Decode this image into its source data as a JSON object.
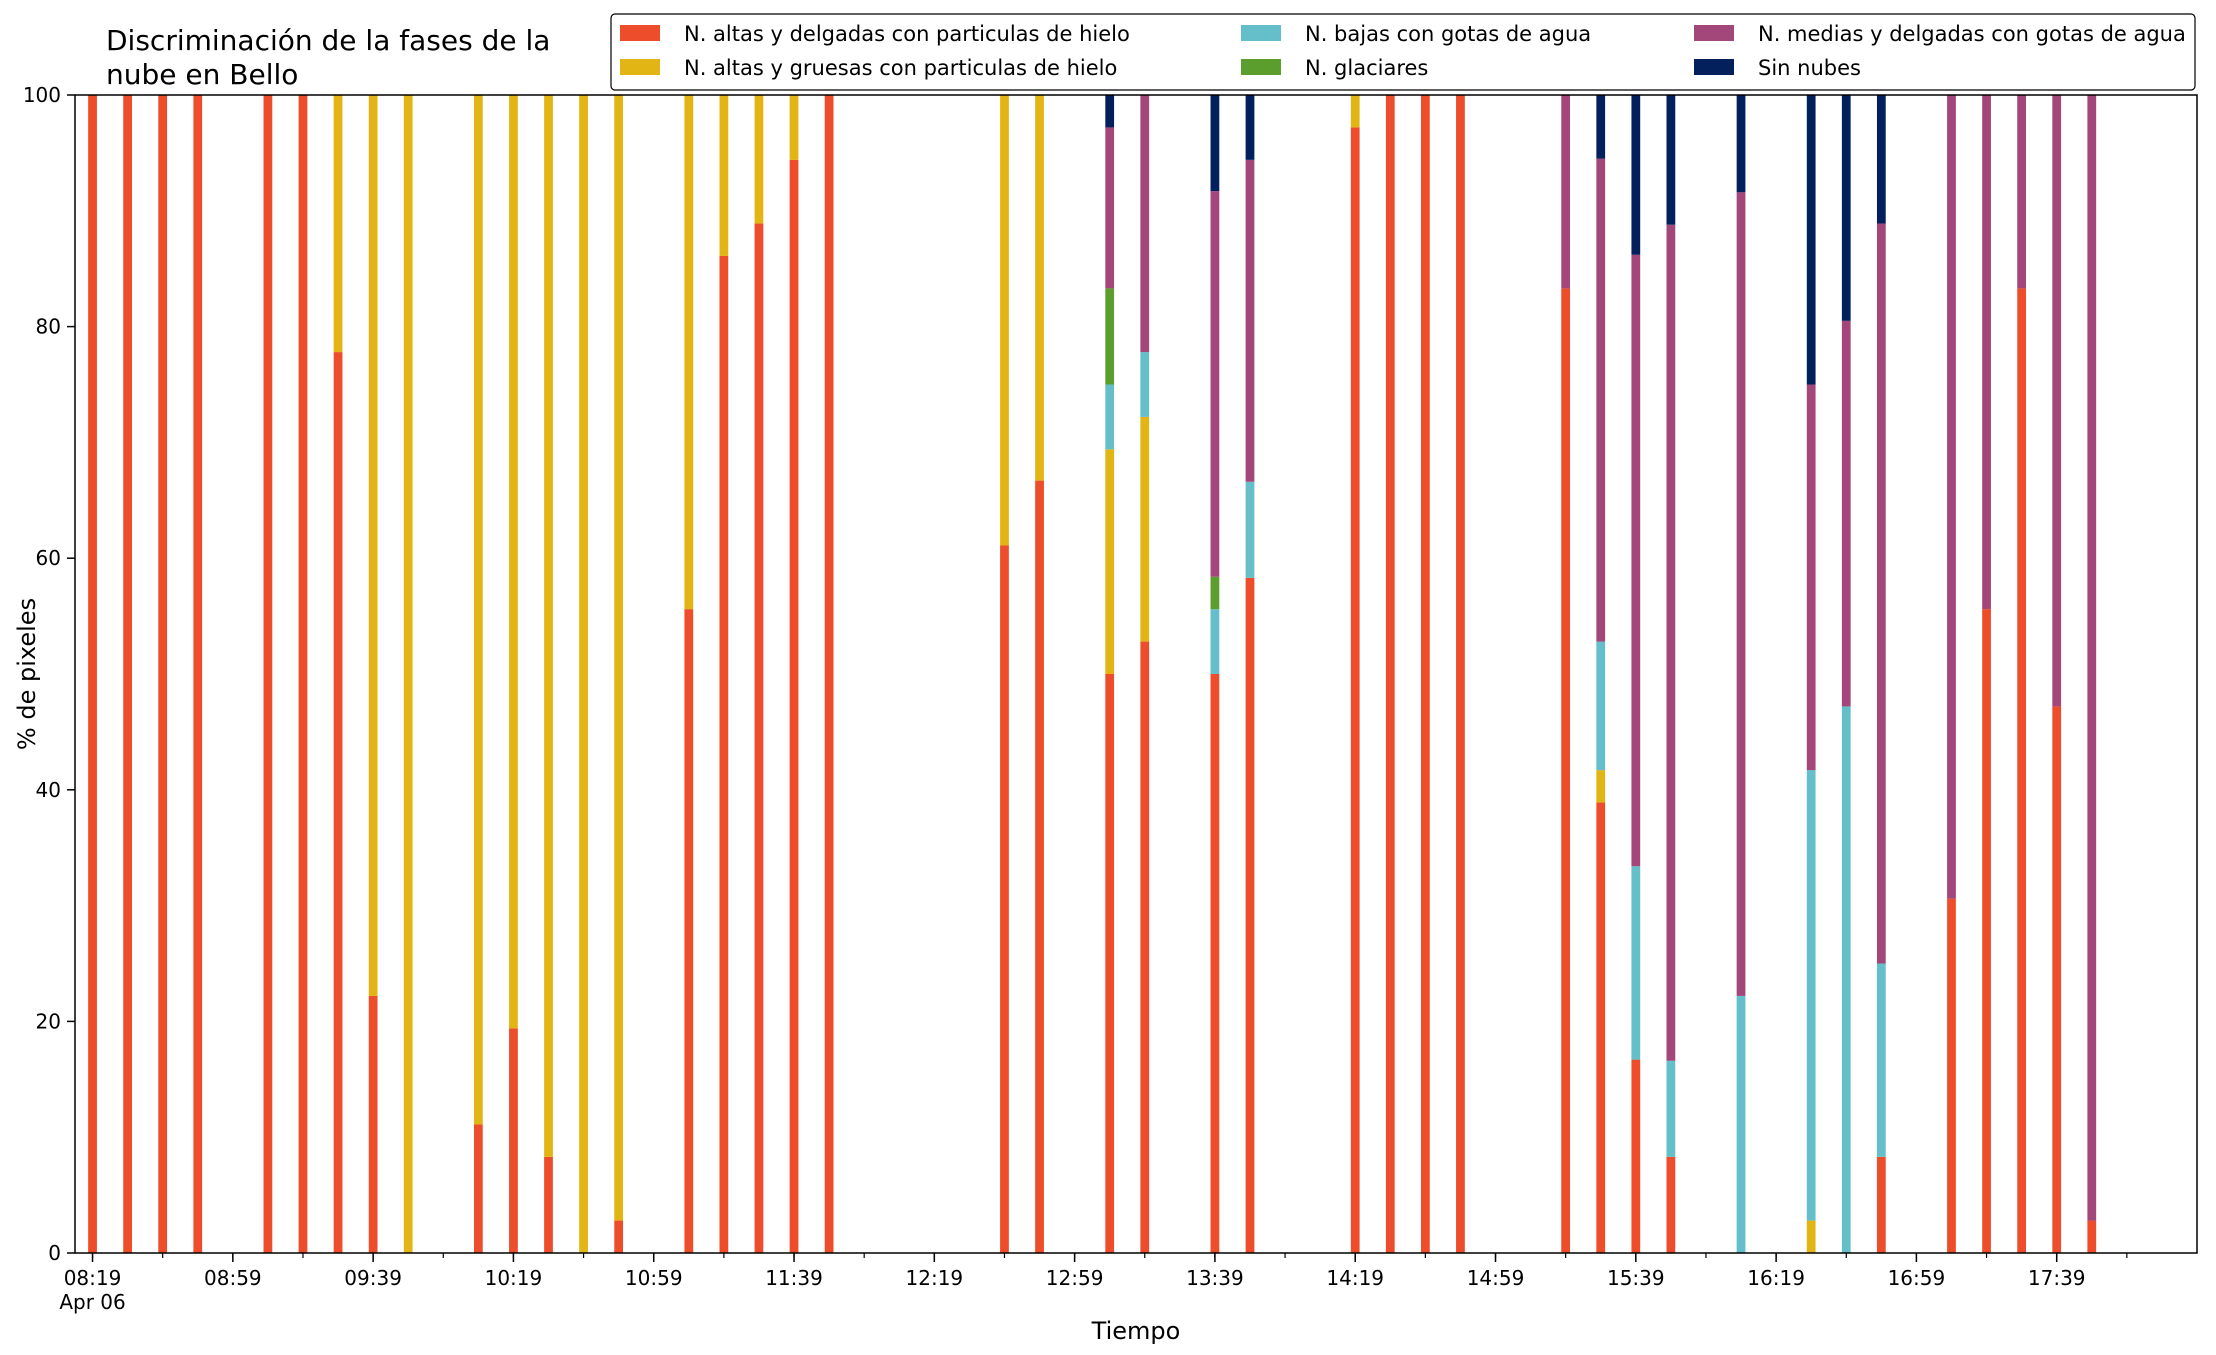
{
  "chart_data": {
    "type": "bar",
    "stacked": true,
    "title": "Discriminación de la fases de la\nnube en Bello",
    "xlabel": "Tiempo",
    "ylabel": "% de pixeles",
    "ylim": [
      0,
      100
    ],
    "yticks": [
      0,
      20,
      40,
      60,
      80,
      100
    ],
    "grid": false,
    "legend_position": "top-right",
    "x_start": "08:19",
    "x_end": "18:14",
    "x_slot_minutes": 5,
    "xticks": [
      {
        "label": "08:19",
        "sub": "Apr 06",
        "time": "08:19"
      },
      {
        "label": "08:59",
        "time": "08:59"
      },
      {
        "label": "09:39",
        "time": "09:39"
      },
      {
        "label": "10:19",
        "time": "10:19"
      },
      {
        "label": "10:59",
        "time": "10:59"
      },
      {
        "label": "11:39",
        "time": "11:39"
      },
      {
        "label": "12:19",
        "time": "12:19"
      },
      {
        "label": "12:59",
        "time": "12:59"
      },
      {
        "label": "13:39",
        "time": "13:39"
      },
      {
        "label": "14:19",
        "time": "14:19"
      },
      {
        "label": "14:59",
        "time": "14:59"
      },
      {
        "label": "15:39",
        "time": "15:39"
      },
      {
        "label": "16:19",
        "time": "16:19"
      },
      {
        "label": "16:59",
        "time": "16:59"
      },
      {
        "label": "17:39",
        "time": "17:39"
      }
    ],
    "series": [
      {
        "name": "N. altas y delgadas con particulas de hielo",
        "color": "#ee4d2c"
      },
      {
        "name": "N. altas y gruesas con particulas de hielo",
        "color": "#e3b514"
      },
      {
        "name": "N. bajas con gotas de agua",
        "color": "#65bfcb"
      },
      {
        "name": "N. glaciares",
        "color": "#5c9e2e"
      },
      {
        "name": "N. medias y delgadas con gotas de agua",
        "color": "#a3467a"
      },
      {
        "name": "Sin nubes",
        "color": "#04205c"
      }
    ],
    "bars": [
      {
        "time": "08:19",
        "values": [
          100,
          0,
          0,
          0,
          0,
          0
        ]
      },
      {
        "time": "08:29",
        "values": [
          100,
          0,
          0,
          0,
          0,
          0
        ]
      },
      {
        "time": "08:39",
        "values": [
          100,
          0,
          0,
          0,
          0,
          0
        ]
      },
      {
        "time": "08:49",
        "values": [
          100,
          0,
          0,
          0,
          0,
          0
        ]
      },
      {
        "time": "09:09",
        "values": [
          100,
          0,
          0,
          0,
          0,
          0
        ]
      },
      {
        "time": "09:19",
        "values": [
          100,
          0,
          0,
          0,
          0,
          0
        ]
      },
      {
        "time": "09:29",
        "values": [
          77.8,
          22.2,
          0,
          0,
          0,
          0
        ]
      },
      {
        "time": "09:39",
        "values": [
          22.2,
          77.8,
          0,
          0,
          0,
          0
        ]
      },
      {
        "time": "09:49",
        "values": [
          0,
          100,
          0,
          0,
          0,
          0
        ]
      },
      {
        "time": "10:09",
        "values": [
          11.1,
          88.9,
          0,
          0,
          0,
          0
        ]
      },
      {
        "time": "10:19",
        "values": [
          19.4,
          80.6,
          0,
          0,
          0,
          0
        ]
      },
      {
        "time": "10:29",
        "values": [
          8.3,
          91.7,
          0,
          0,
          0,
          0
        ]
      },
      {
        "time": "10:39",
        "values": [
          0,
          100,
          0,
          0,
          0,
          0
        ]
      },
      {
        "time": "10:49",
        "values": [
          2.8,
          97.2,
          0,
          0,
          0,
          0
        ]
      },
      {
        "time": "11:09",
        "values": [
          55.6,
          44.4,
          0,
          0,
          0,
          0
        ]
      },
      {
        "time": "11:19",
        "values": [
          86.1,
          13.9,
          0,
          0,
          0,
          0
        ]
      },
      {
        "time": "11:29",
        "values": [
          88.9,
          11.1,
          0,
          0,
          0,
          0
        ]
      },
      {
        "time": "11:39",
        "values": [
          94.4,
          5.6,
          0,
          0,
          0,
          0
        ]
      },
      {
        "time": "11:49",
        "values": [
          100,
          0,
          0,
          0,
          0,
          0
        ]
      },
      {
        "time": "12:39",
        "values": [
          61.1,
          38.9,
          0,
          0,
          0,
          0
        ]
      },
      {
        "time": "12:49",
        "values": [
          66.7,
          33.3,
          0,
          0,
          0,
          0
        ]
      },
      {
        "time": "13:09",
        "values": [
          50,
          19.4,
          5.6,
          8.3,
          13.9,
          2.8
        ]
      },
      {
        "time": "13:19",
        "values": [
          52.8,
          19.4,
          5.6,
          0,
          22.2,
          0
        ]
      },
      {
        "time": "13:39",
        "values": [
          50,
          0,
          5.6,
          2.8,
          33.3,
          8.3
        ]
      },
      {
        "time": "13:49",
        "values": [
          58.3,
          0,
          8.3,
          0,
          27.8,
          5.6
        ]
      },
      {
        "time": "14:19",
        "values": [
          97.2,
          2.8,
          0,
          0,
          0,
          0
        ]
      },
      {
        "time": "14:29",
        "values": [
          100,
          0,
          0,
          0,
          0,
          0
        ]
      },
      {
        "time": "14:39",
        "values": [
          100,
          0,
          0,
          0,
          0,
          0
        ]
      },
      {
        "time": "14:49",
        "values": [
          100,
          0,
          0,
          0,
          0,
          0
        ]
      },
      {
        "time": "15:19",
        "values": [
          83.3,
          0,
          0,
          0,
          16.7,
          0
        ]
      },
      {
        "time": "15:29",
        "values": [
          38.9,
          2.8,
          11.1,
          0,
          41.7,
          5.5
        ]
      },
      {
        "time": "15:39",
        "values": [
          16.7,
          0,
          16.7,
          0,
          52.8,
          13.8
        ]
      },
      {
        "time": "15:49",
        "values": [
          8.3,
          0,
          8.3,
          0,
          72.2,
          11.2
        ]
      },
      {
        "time": "16:09",
        "values": [
          0,
          0,
          22.2,
          0,
          69.4,
          8.4
        ]
      },
      {
        "time": "16:29",
        "values": [
          0,
          2.8,
          38.9,
          0,
          33.3,
          25
        ]
      },
      {
        "time": "16:39",
        "values": [
          0,
          0,
          47.2,
          0,
          33.3,
          19.5
        ]
      },
      {
        "time": "16:49",
        "values": [
          8.3,
          0,
          16.7,
          0,
          63.9,
          11.1
        ]
      },
      {
        "time": "17:09",
        "values": [
          30.6,
          0,
          0,
          0,
          69.4,
          0
        ]
      },
      {
        "time": "17:19",
        "values": [
          55.6,
          0,
          0,
          0,
          44.4,
          0
        ]
      },
      {
        "time": "17:29",
        "values": [
          83.3,
          0,
          0,
          0,
          16.7,
          0
        ]
      },
      {
        "time": "17:39",
        "values": [
          47.2,
          0,
          0,
          0,
          52.8,
          0
        ]
      },
      {
        "time": "17:49",
        "values": [
          2.8,
          0,
          0,
          0,
          97.2,
          0
        ]
      }
    ]
  }
}
